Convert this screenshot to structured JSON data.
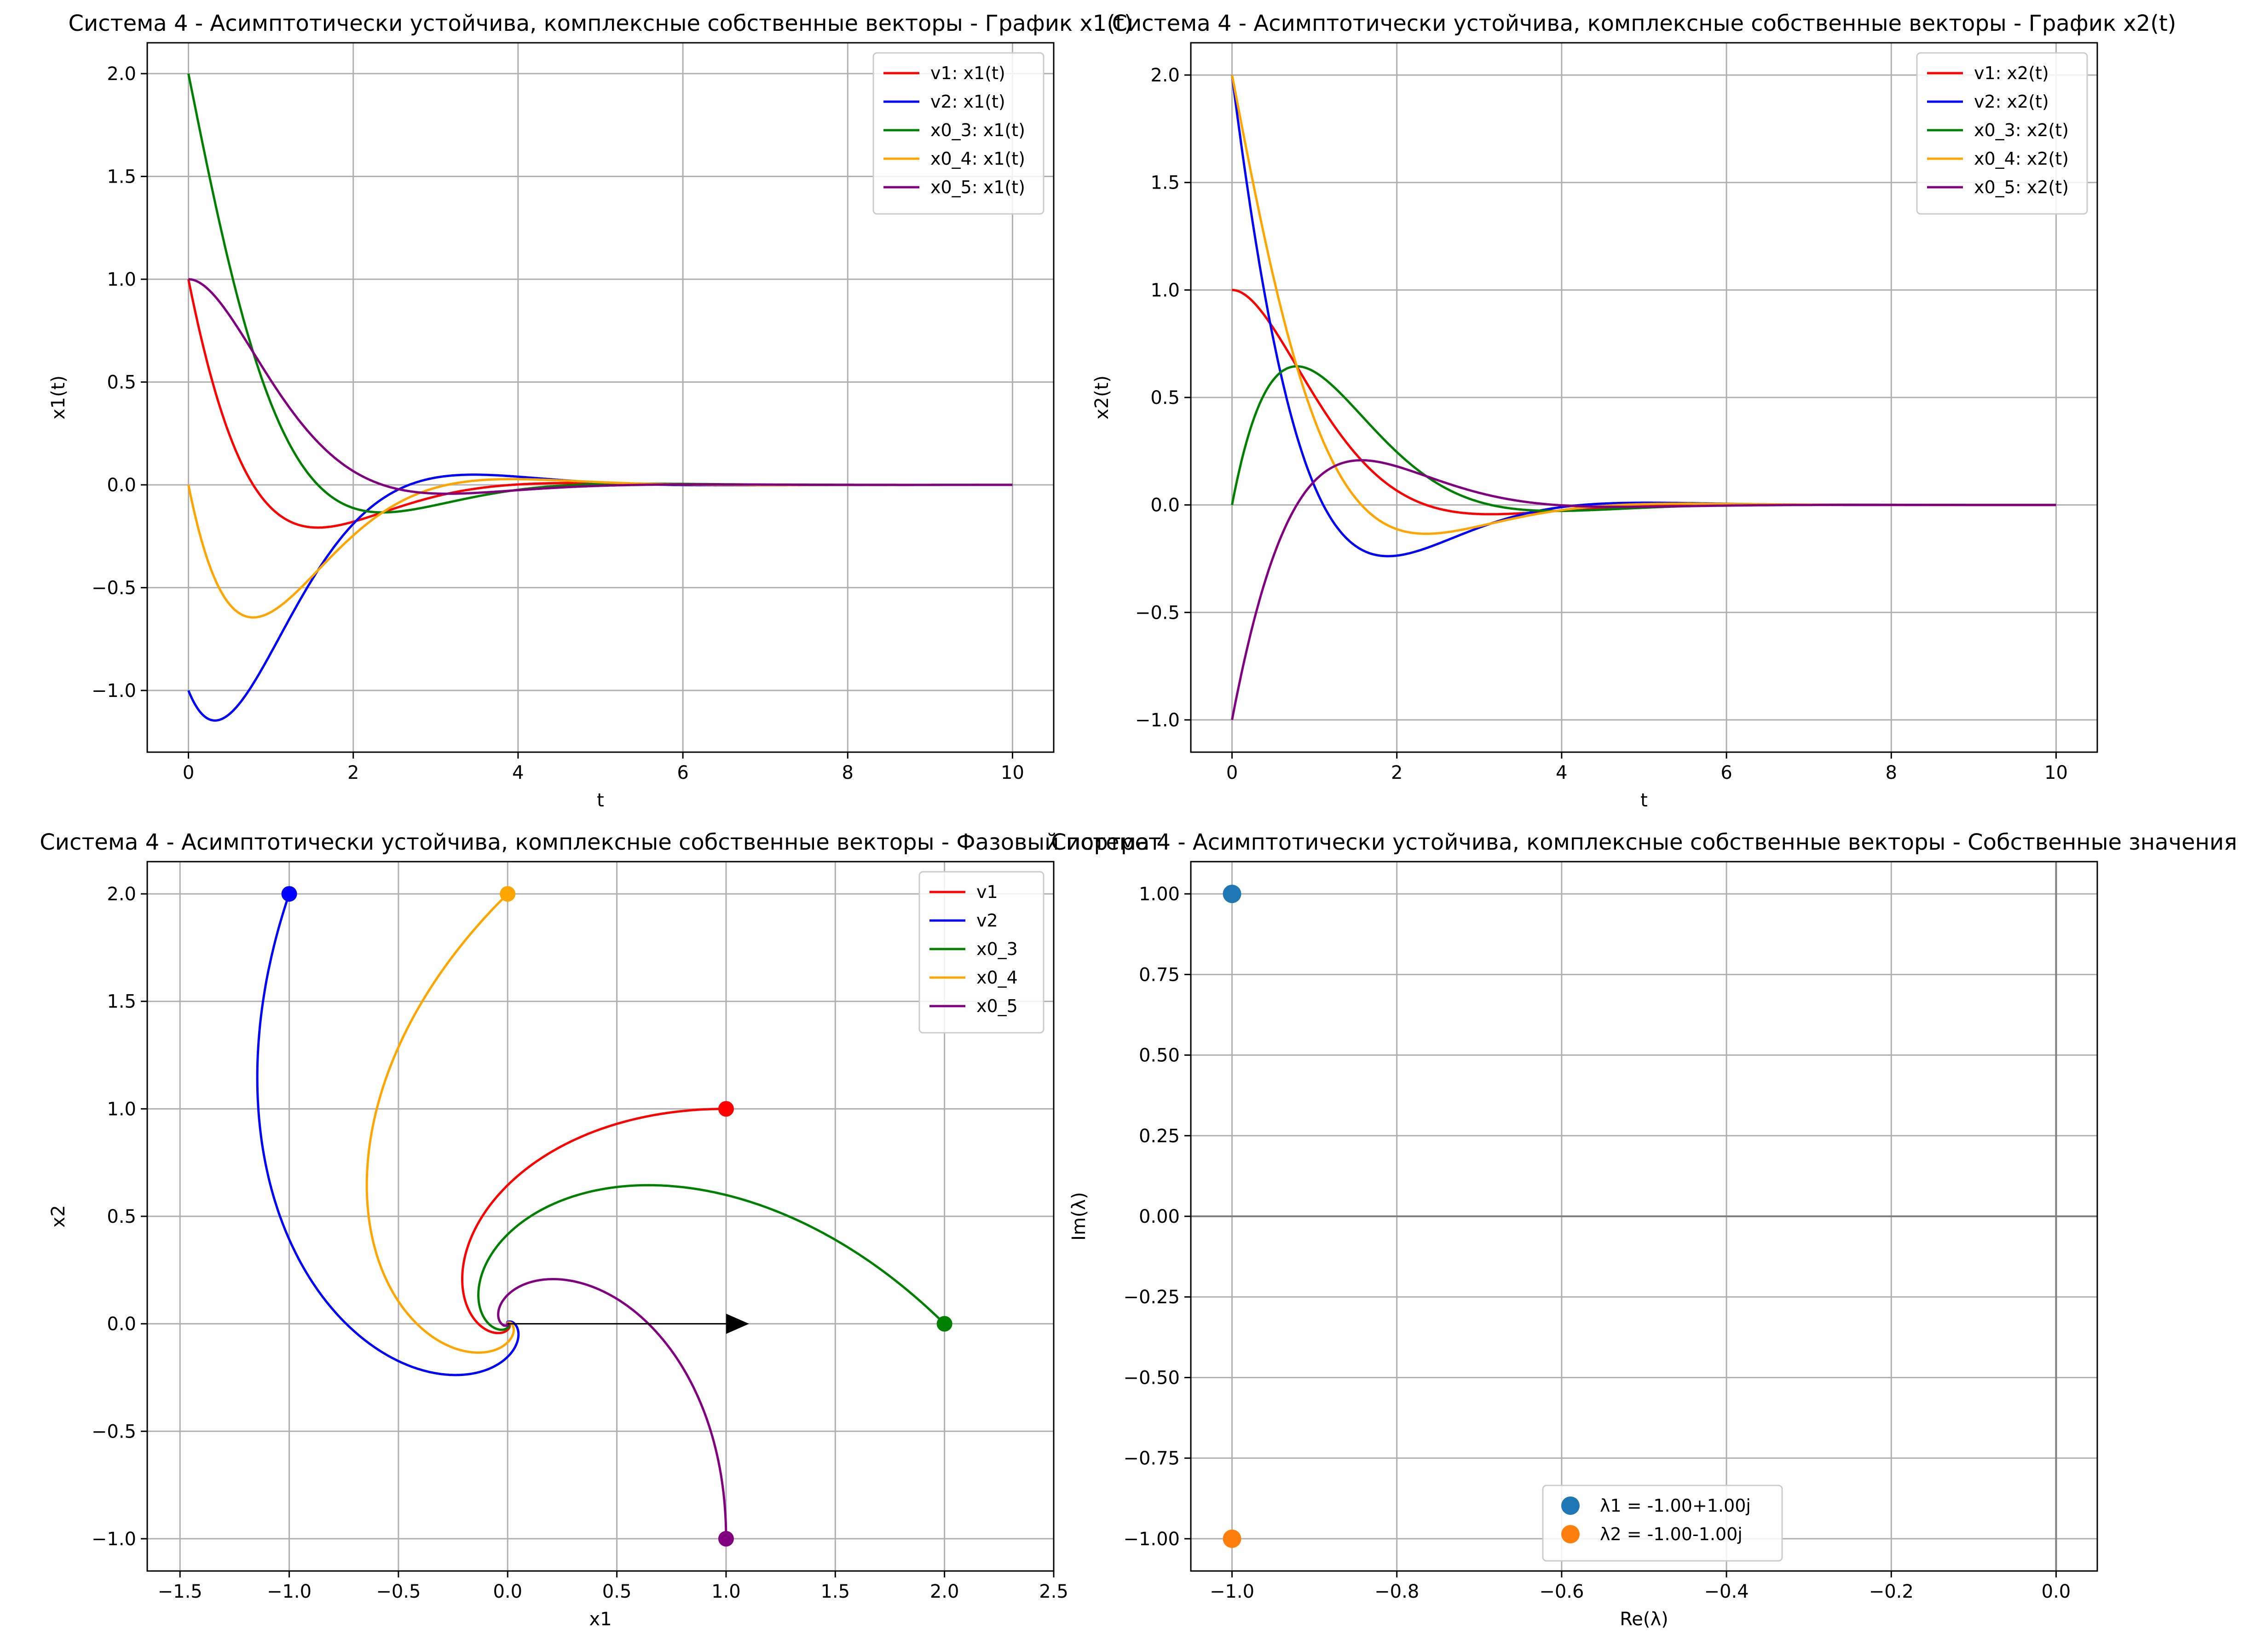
{
  "colors": {
    "red": "#ff0000",
    "blue": "#0000ff",
    "green": "#008000",
    "orange": "#ffa500",
    "purple": "#800080",
    "tab_blue": "#1f77b4",
    "tab_orange": "#ff7f0e",
    "grid": "#b0b0b0"
  },
  "chart_data": [
    {
      "type": "line",
      "title": "Система 4 - Асимптотически устойчива, комплексные собственные векторы - График x1(t)",
      "xlabel": "t",
      "ylabel": "x1(t)",
      "xlim": [
        -0.5,
        10.5
      ],
      "ylim": [
        -1.3,
        2.15
      ],
      "xticks": [
        0,
        2,
        4,
        6,
        8,
        10
      ],
      "xtick_labels": [
        "0",
        "2",
        "4",
        "6",
        "8",
        "10"
      ],
      "yticks": [
        -1.0,
        -0.5,
        0.0,
        0.5,
        1.0,
        1.5,
        2.0
      ],
      "ytick_labels": [
        "−1.0",
        "−0.5",
        "0.0",
        "0.5",
        "1.0",
        "1.5",
        "2.0"
      ],
      "grid": true,
      "legend_position": "top-right",
      "series": [
        {
          "name": "v1: x1(t)",
          "color": "red",
          "x0": [
            1,
            1
          ],
          "component": 0
        },
        {
          "name": "v2: x1(t)",
          "color": "blue",
          "x0": [
            -1,
            2
          ],
          "component": 0
        },
        {
          "name": "x0_3: x1(t)",
          "color": "green",
          "x0": [
            2,
            0
          ],
          "component": 0
        },
        {
          "name": "x0_4: x1(t)",
          "color": "orange",
          "x0": [
            0,
            2
          ],
          "component": 0
        },
        {
          "name": "x0_5: x1(t)",
          "color": "purple",
          "x0": [
            1,
            -1
          ],
          "component": 0
        }
      ]
    },
    {
      "type": "line",
      "title": "Система 4 - Асимптотически устойчива, комплексные собственные векторы - График x2(t)",
      "xlabel": "t",
      "ylabel": "x2(t)",
      "xlim": [
        -0.5,
        10.5
      ],
      "ylim": [
        -1.15,
        2.15
      ],
      "xticks": [
        0,
        2,
        4,
        6,
        8,
        10
      ],
      "xtick_labels": [
        "0",
        "2",
        "4",
        "6",
        "8",
        "10"
      ],
      "yticks": [
        -1.0,
        -0.5,
        0.0,
        0.5,
        1.0,
        1.5,
        2.0
      ],
      "ytick_labels": [
        "−1.0",
        "−0.5",
        "0.0",
        "0.5",
        "1.0",
        "1.5",
        "2.0"
      ],
      "grid": true,
      "legend_position": "top-right",
      "series": [
        {
          "name": "v1: x2(t)",
          "color": "red",
          "x0": [
            1,
            1
          ],
          "component": 1
        },
        {
          "name": "v2: x2(t)",
          "color": "blue",
          "x0": [
            -1,
            2
          ],
          "component": 1
        },
        {
          "name": "x0_3: x2(t)",
          "color": "green",
          "x0": [
            2,
            0
          ],
          "component": 1
        },
        {
          "name": "x0_4: x2(t)",
          "color": "orange",
          "x0": [
            0,
            2
          ],
          "component": 1
        },
        {
          "name": "x0_5: x2(t)",
          "color": "purple",
          "x0": [
            1,
            -1
          ],
          "component": 1
        }
      ]
    },
    {
      "type": "line",
      "title": "Система 4 - Асимптотически устойчива, комплексные собственные векторы - Фазовый портрет",
      "xlabel": "x1",
      "ylabel": "x2",
      "xlim": [
        -1.65,
        2.5
      ],
      "ylim": [
        -1.15,
        2.15
      ],
      "xticks": [
        -1.5,
        -1.0,
        -0.5,
        0.0,
        0.5,
        1.0,
        1.5,
        2.0,
        2.5
      ],
      "xtick_labels": [
        "−1.5",
        "−1.0",
        "−0.5",
        "0.0",
        "0.5",
        "1.0",
        "1.5",
        "2.0",
        "2.5"
      ],
      "yticks": [
        -1.0,
        -0.5,
        0.0,
        0.5,
        1.0,
        1.5,
        2.0
      ],
      "ytick_labels": [
        "−1.0",
        "−0.5",
        "0.0",
        "0.5",
        "1.0",
        "1.5",
        "2.0"
      ],
      "grid": true,
      "legend_position": "top-right",
      "arrow": {
        "from": [
          0,
          0
        ],
        "to": [
          1,
          0
        ],
        "color": "#000000"
      },
      "series": [
        {
          "name": "v1",
          "color": "red",
          "x0": [
            1,
            1
          ]
        },
        {
          "name": "v2",
          "color": "blue",
          "x0": [
            -1,
            2
          ]
        },
        {
          "name": "x0_3",
          "color": "green",
          "x0": [
            2,
            0
          ]
        },
        {
          "name": "x0_4",
          "color": "orange",
          "x0": [
            0,
            2
          ]
        },
        {
          "name": "x0_5",
          "color": "purple",
          "x0": [
            1,
            -1
          ]
        }
      ]
    },
    {
      "type": "scatter",
      "title": "Система 4 - Асимптотически устойчива, комплексные собственные векторы - Собственные значения",
      "xlabel": "Re(λ)",
      "ylabel": "Im(λ)",
      "xlim": [
        -1.05,
        0.05
      ],
      "ylim": [
        -1.1,
        1.1
      ],
      "xticks": [
        -1.0,
        -0.8,
        -0.6,
        -0.4,
        -0.2,
        0.0
      ],
      "xtick_labels": [
        "−1.0",
        "−0.8",
        "−0.6",
        "−0.4",
        "−0.2",
        "0.0"
      ],
      "yticks": [
        -1.0,
        -0.75,
        -0.5,
        -0.25,
        0.0,
        0.25,
        0.5,
        0.75,
        1.0
      ],
      "ytick_labels": [
        "−1.00",
        "−0.75",
        "−0.50",
        "−0.25",
        "0.00",
        "0.25",
        "0.50",
        "0.75",
        "1.00"
      ],
      "grid": true,
      "legend_position": "bottom-center",
      "points": [
        {
          "name": "λ1 = -1.00+1.00j",
          "x": -1.0,
          "y": 1.0,
          "color": "tab_blue"
        },
        {
          "name": "λ2 = -1.00-1.00j",
          "x": -1.0,
          "y": -1.0,
          "color": "tab_orange"
        }
      ]
    }
  ]
}
